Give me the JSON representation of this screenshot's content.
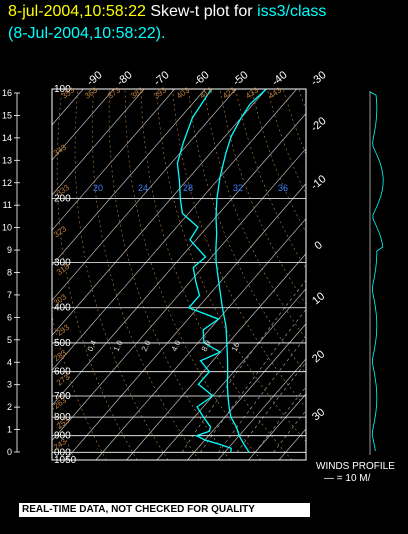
{
  "header": {
    "datetime": "8-jul-2004,10:58:22",
    "plot_prefix": "Skew-t plot for",
    "station": "iss3/class",
    "run_time": "(8-Jul-2004,10:58:22)."
  },
  "winds": {
    "label": "WINDS PROFILE",
    "scale": "— = 10 M/"
  },
  "footer": {
    "note": "REAL-TIME DATA, NOT CHECKED FOR QUALITY"
  },
  "colors": {
    "background": "#000000",
    "grid": "#ffffff",
    "isotherm": "#bbbbbb",
    "adiabat": "#c08040",
    "sounding": "#00ffff",
    "mixing_ratio_label": "#4080ff"
  },
  "chart_data": {
    "type": "line",
    "title": "Skew-t plot for iss3/class",
    "pressure_levels": [
      100,
      200,
      300,
      400,
      500,
      600,
      700,
      800,
      900,
      1000,
      1050
    ],
    "pressure_tick_labels": [
      "100",
      "200",
      "300",
      "400",
      "500",
      "600",
      "700",
      "800",
      "900",
      "000",
      "1050"
    ],
    "height_ticks_km": [
      "16",
      "15",
      "14",
      "13",
      "12",
      "11",
      "10",
      "9",
      "8",
      "7",
      "6",
      "5",
      "4",
      "3",
      "2",
      "1",
      "0"
    ],
    "top_temp_labels": [
      "-90",
      "-80",
      "-70",
      "-60",
      "-50",
      "-40",
      "-30"
    ],
    "right_temp_labels": [
      "-20",
      "-10",
      "0",
      "10",
      "20",
      "30"
    ],
    "dry_adiabat_labels": [
      "243",
      "253",
      "263",
      "273",
      "283",
      "293",
      "303",
      "313",
      "323",
      "333",
      "343",
      "353",
      "363",
      "373",
      "383",
      "393",
      "403",
      "413",
      "423",
      "433",
      "443",
      "453"
    ],
    "mixing_ratio_labels": [
      "0.4",
      "1.0",
      "2.0",
      "4.0",
      "8.0",
      "16",
      "20",
      "24",
      "28",
      "32",
      "36"
    ],
    "series": [
      {
        "name": "Temperature",
        "points": [
          [
            1000,
            28
          ],
          [
            950,
            24
          ],
          [
            900,
            20
          ],
          [
            850,
            16.5
          ],
          [
            800,
            12
          ],
          [
            750,
            8.5
          ],
          [
            700,
            5
          ],
          [
            650,
            1.5
          ],
          [
            600,
            -2
          ],
          [
            550,
            -6
          ],
          [
            500,
            -10.5
          ],
          [
            450,
            -15.5
          ],
          [
            400,
            -22
          ],
          [
            350,
            -29
          ],
          [
            300,
            -37
          ],
          [
            275,
            -41
          ],
          [
            250,
            -45
          ],
          [
            225,
            -50
          ],
          [
            200,
            -55
          ],
          [
            175,
            -60
          ],
          [
            150,
            -65
          ],
          [
            135,
            -68
          ],
          [
            120,
            -70
          ],
          [
            110,
            -71
          ],
          [
            100,
            -70
          ]
        ]
      },
      {
        "name": "Dewpoint",
        "points": [
          [
            1000,
            22
          ],
          [
            975,
            21
          ],
          [
            950,
            16
          ],
          [
            925,
            10
          ],
          [
            900,
            6
          ],
          [
            875,
            9
          ],
          [
            850,
            8
          ],
          [
            800,
            3
          ],
          [
            750,
            -2
          ],
          [
            700,
            0
          ],
          [
            680,
            -3
          ],
          [
            650,
            -8
          ],
          [
            600,
            -8
          ],
          [
            560,
            -14
          ],
          [
            530,
            -10
          ],
          [
            500,
            -18
          ],
          [
            460,
            -22
          ],
          [
            430,
            -20
          ],
          [
            400,
            -33
          ],
          [
            370,
            -33
          ],
          [
            340,
            -38
          ],
          [
            310,
            -43
          ],
          [
            290,
            -42
          ],
          [
            260,
            -52
          ],
          [
            240,
            -53
          ],
          [
            220,
            -62
          ],
          [
            200,
            -67
          ],
          [
            180,
            -72
          ],
          [
            160,
            -78
          ],
          [
            140,
            -82
          ],
          [
            120,
            -86
          ],
          [
            100,
            -88
          ]
        ]
      }
    ]
  }
}
